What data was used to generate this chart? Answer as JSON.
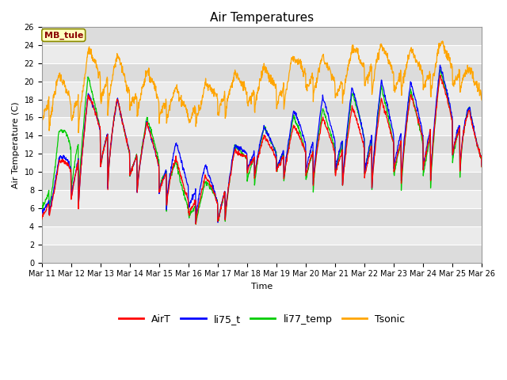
{
  "title": "Air Temperatures",
  "xlabel": "Time",
  "ylabel": "Air Temperature (C)",
  "ylim": [
    0,
    26
  ],
  "annotation": "MB_tule",
  "legend": [
    "AirT",
    "li75_t",
    "li77_temp",
    "Tsonic"
  ],
  "colors": {
    "AirT": "#FF0000",
    "li75_t": "#0000FF",
    "li77_temp": "#00CC00",
    "Tsonic": "#FFA500"
  },
  "tick_labels": [
    "Mar 11",
    "Mar 12",
    "Mar 13",
    "Mar 14",
    "Mar 15",
    "Mar 16",
    "Mar 17",
    "Mar 18",
    "Mar 19",
    "Mar 20",
    "Mar 21",
    "Mar 22",
    "Mar 23",
    "Mar 24",
    "Mar 25",
    "Mar 26"
  ],
  "yticks": [
    0,
    2,
    4,
    6,
    8,
    10,
    12,
    14,
    16,
    18,
    20,
    22,
    24,
    26
  ],
  "band_colors": [
    "#DCDCDC",
    "#EBEBEB"
  ],
  "title_fontsize": 11,
  "axis_fontsize": 8,
  "tick_fontsize": 7,
  "legend_fontsize": 9
}
